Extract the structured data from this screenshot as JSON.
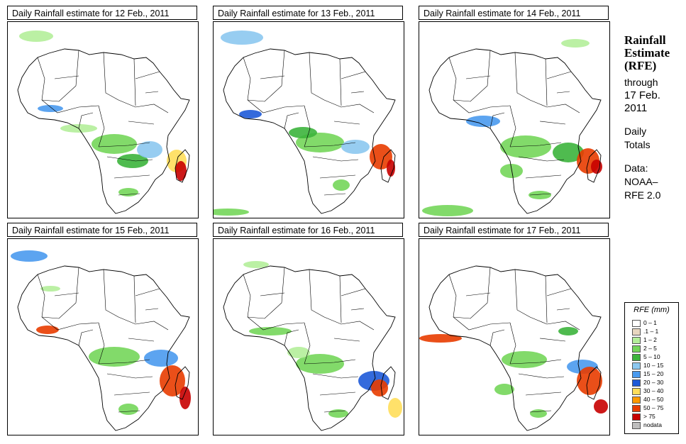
{
  "panels": [
    {
      "title": "Daily Rainfall estimate for  12 Feb., 2011"
    },
    {
      "title": "Daily Rainfall estimate for  13 Feb., 2011"
    },
    {
      "title": "Daily Rainfall estimate for  14 Feb., 2011"
    },
    {
      "title": "Daily Rainfall estimate for  15 Feb., 2011"
    },
    {
      "title": "Daily Rainfall estimate for  16 Feb., 2011"
    },
    {
      "title": "Daily Rainfall estimate for  17 Feb., 2011"
    }
  ],
  "sidebar": {
    "title_line1": "Rainfall",
    "title_line2": "Estimate",
    "title_line3": "(RFE)",
    "through": "through",
    "date_line1": "17 Feb.",
    "date_line2": "2011",
    "daily": "Daily",
    "totals": "Totals",
    "data_label": "Data:",
    "source_line1": "NOAA–",
    "source_line2": "RFE 2.0"
  },
  "legend": {
    "title": "RFE (mm)",
    "items": [
      {
        "label": "0 – 1",
        "color": "#ffffff"
      },
      {
        "label": ".1 – 1",
        "color": "#e8d6bf"
      },
      {
        "label": "1 – 2",
        "color": "#b4ee9a"
      },
      {
        "label": "2 – 5",
        "color": "#74d65a"
      },
      {
        "label": "5 – 10",
        "color": "#3cb43c"
      },
      {
        "label": "10 – 15",
        "color": "#8cc8f0"
      },
      {
        "label": "15 – 20",
        "color": "#4a9aee"
      },
      {
        "label": "20 – 30",
        "color": "#1e5ad8"
      },
      {
        "label": "30 – 40",
        "color": "#ffde5a"
      },
      {
        "label": "40 – 50",
        "color": "#ff9a00"
      },
      {
        "label": "50 – 75",
        "color": "#e83c00"
      },
      {
        "label": "> 75",
        "color": "#c80000"
      },
      {
        "label": "nodata",
        "color": "#bebebe"
      }
    ]
  }
}
